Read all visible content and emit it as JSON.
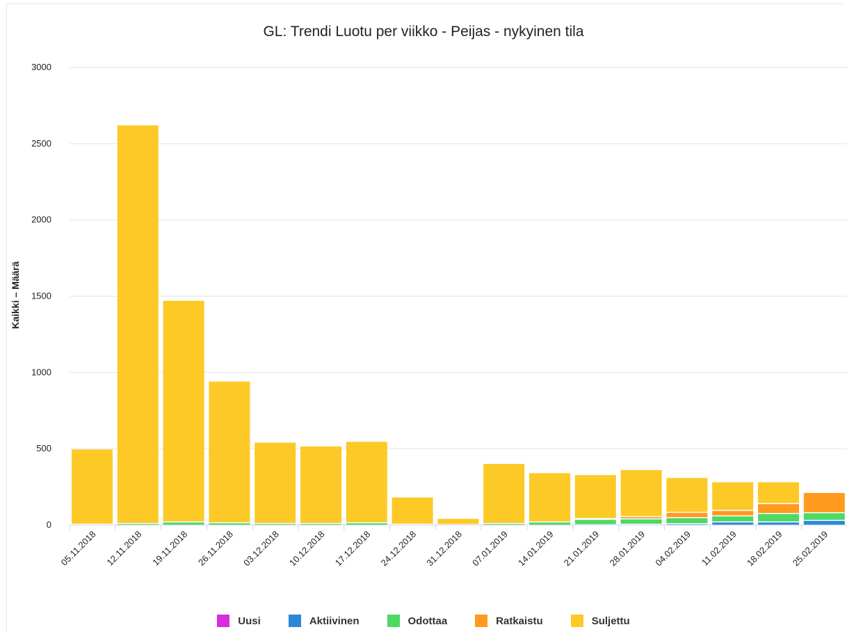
{
  "chart_data": {
    "type": "bar",
    "stacked": true,
    "title": "GL: Trendi Luotu per viikko - Peijas - nykyinen tila",
    "ylabel": "Kaikki – Määrä",
    "xlabel": "",
    "ylim": [
      0,
      3000
    ],
    "yticks": [
      0,
      500,
      1000,
      1500,
      2000,
      2500,
      3000
    ],
    "grid": true,
    "legend_position": "bottom",
    "categories": [
      "05.11.2018",
      "12.11.2018",
      "19.11.2018",
      "26.11.2018",
      "03.12.2018",
      "10.12.2018",
      "17.12.2018",
      "24.12.2018",
      "31.12.2018",
      "07.01.2019",
      "14.01.2019",
      "21.01.2019",
      "28.01.2019",
      "04.02.2019",
      "11.02.2019",
      "18.02.2019",
      "25.02.2019"
    ],
    "series": [
      {
        "name": "Uusi",
        "color": "#d62ddd",
        "values": [
          0,
          0,
          0,
          0,
          0,
          0,
          0,
          0,
          0,
          0,
          0,
          0,
          0,
          0,
          0,
          0,
          0
        ]
      },
      {
        "name": "Aktiivinen",
        "color": "#2b88d8",
        "values": [
          0,
          0,
          0,
          0,
          0,
          0,
          0,
          0,
          0,
          0,
          0,
          2,
          5,
          8,
          20,
          20,
          30
        ]
      },
      {
        "name": "Odottaa",
        "color": "#4cd964",
        "values": [
          5,
          10,
          20,
          15,
          10,
          10,
          15,
          5,
          3,
          10,
          20,
          35,
          35,
          40,
          40,
          55,
          50
        ]
      },
      {
        "name": "Ratkaistu",
        "color": "#ff9a1f",
        "values": [
          0,
          0,
          0,
          0,
          0,
          0,
          0,
          0,
          0,
          0,
          0,
          5,
          15,
          35,
          35,
          65,
          130
        ]
      },
      {
        "name": "Suljettu",
        "color": "#fdc926",
        "values": [
          490,
          2610,
          1450,
          925,
          530,
          505,
          530,
          175,
          37,
          390,
          320,
          285,
          305,
          225,
          185,
          140,
          0
        ]
      }
    ]
  }
}
